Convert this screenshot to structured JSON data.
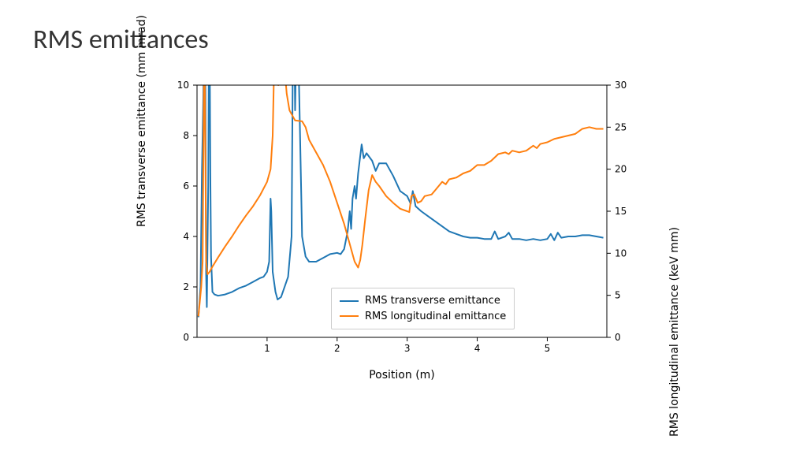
{
  "title": "RMS emittances",
  "chart": {
    "type": "line",
    "xlabel": "Position (m)",
    "ylabel_left": "RMS transverse emittance (mm mrad)",
    "ylabel_right": "RMS longitudinal emittance (keV mm)",
    "xlim": [
      0,
      5.85
    ],
    "ylim_left": [
      0,
      10
    ],
    "ylim_right": [
      0,
      30
    ],
    "xticks": [
      1,
      2,
      3,
      4,
      5
    ],
    "yticks_left": [
      0,
      2,
      4,
      6,
      8,
      10
    ],
    "yticks_right": [
      0,
      5,
      10,
      15,
      20,
      25,
      30
    ],
    "background_color": "#ffffff",
    "axis_color": "#000000",
    "tick_fontsize": 12,
    "label_fontsize": 14,
    "line_width": 2,
    "legend": {
      "position": "lower center",
      "items": [
        {
          "label": "RMS transverse emittance",
          "color": "#1f77b4"
        },
        {
          "label": "RMS longitudinal emittance",
          "color": "#ff7f0e"
        }
      ]
    },
    "series_transverse": {
      "color": "#1f77b4",
      "axis": "left",
      "data": [
        [
          0.02,
          0.8
        ],
        [
          0.05,
          2.0
        ],
        [
          0.07,
          6.5
        ],
        [
          0.09,
          9.5
        ],
        [
          0.1,
          12.0
        ],
        [
          0.11,
          12.0
        ],
        [
          0.12,
          9.8
        ],
        [
          0.13,
          2.5
        ],
        [
          0.14,
          1.2
        ],
        [
          0.16,
          6.0
        ],
        [
          0.17,
          12.0
        ],
        [
          0.18,
          12.0
        ],
        [
          0.19,
          6.5
        ],
        [
          0.2,
          3.2
        ],
        [
          0.22,
          1.8
        ],
        [
          0.25,
          1.7
        ],
        [
          0.3,
          1.65
        ],
        [
          0.4,
          1.7
        ],
        [
          0.5,
          1.8
        ],
        [
          0.6,
          1.95
        ],
        [
          0.7,
          2.05
        ],
        [
          0.8,
          2.2
        ],
        [
          0.9,
          2.35
        ],
        [
          0.95,
          2.4
        ],
        [
          1.0,
          2.6
        ],
        [
          1.03,
          3.0
        ],
        [
          1.05,
          5.5
        ],
        [
          1.06,
          5.0
        ],
        [
          1.08,
          2.6
        ],
        [
          1.12,
          1.8
        ],
        [
          1.15,
          1.5
        ],
        [
          1.2,
          1.6
        ],
        [
          1.3,
          2.4
        ],
        [
          1.35,
          4.0
        ],
        [
          1.37,
          12.0
        ],
        [
          1.39,
          12.0
        ],
        [
          1.4,
          9.0
        ],
        [
          1.42,
          12.0
        ],
        [
          1.44,
          12.0
        ],
        [
          1.46,
          9.5
        ],
        [
          1.5,
          4.0
        ],
        [
          1.55,
          3.2
        ],
        [
          1.6,
          3.0
        ],
        [
          1.7,
          3.0
        ],
        [
          1.8,
          3.15
        ],
        [
          1.9,
          3.3
        ],
        [
          2.0,
          3.35
        ],
        [
          2.05,
          3.3
        ],
        [
          2.1,
          3.5
        ],
        [
          2.15,
          4.2
        ],
        [
          2.18,
          5.0
        ],
        [
          2.2,
          4.3
        ],
        [
          2.22,
          5.5
        ],
        [
          2.25,
          6.0
        ],
        [
          2.27,
          5.5
        ],
        [
          2.3,
          6.5
        ],
        [
          2.35,
          7.65
        ],
        [
          2.38,
          7.1
        ],
        [
          2.42,
          7.3
        ],
        [
          2.5,
          7.0
        ],
        [
          2.55,
          6.6
        ],
        [
          2.6,
          6.9
        ],
        [
          2.7,
          6.9
        ],
        [
          2.8,
          6.4
        ],
        [
          2.9,
          5.8
        ],
        [
          3.0,
          5.6
        ],
        [
          3.05,
          5.3
        ],
        [
          3.08,
          5.8
        ],
        [
          3.12,
          5.2
        ],
        [
          3.2,
          5.0
        ],
        [
          3.3,
          4.8
        ],
        [
          3.4,
          4.6
        ],
        [
          3.5,
          4.4
        ],
        [
          3.6,
          4.2
        ],
        [
          3.7,
          4.1
        ],
        [
          3.8,
          4.0
        ],
        [
          3.9,
          3.95
        ],
        [
          4.0,
          3.95
        ],
        [
          4.1,
          3.9
        ],
        [
          4.2,
          3.9
        ],
        [
          4.25,
          4.2
        ],
        [
          4.3,
          3.9
        ],
        [
          4.4,
          4.0
        ],
        [
          4.45,
          4.15
        ],
        [
          4.5,
          3.9
        ],
        [
          4.6,
          3.9
        ],
        [
          4.7,
          3.85
        ],
        [
          4.8,
          3.9
        ],
        [
          4.9,
          3.85
        ],
        [
          5.0,
          3.9
        ],
        [
          5.05,
          4.1
        ],
        [
          5.1,
          3.85
        ],
        [
          5.15,
          4.15
        ],
        [
          5.2,
          3.95
        ],
        [
          5.3,
          4.0
        ],
        [
          5.4,
          4.0
        ],
        [
          5.5,
          4.05
        ],
        [
          5.6,
          4.05
        ],
        [
          5.7,
          4.0
        ],
        [
          5.8,
          3.95
        ]
      ]
    },
    "series_longitudinal": {
      "color": "#ff7f0e",
      "axis": "right",
      "data": [
        [
          0.02,
          2.5
        ],
        [
          0.06,
          6.0
        ],
        [
          0.08,
          9.0
        ],
        [
          0.1,
          32.0
        ],
        [
          0.11,
          32.0
        ],
        [
          0.13,
          9.0
        ],
        [
          0.15,
          7.5
        ],
        [
          0.18,
          7.8
        ],
        [
          0.22,
          8.4
        ],
        [
          0.3,
          9.5
        ],
        [
          0.4,
          10.8
        ],
        [
          0.5,
          12.0
        ],
        [
          0.6,
          13.3
        ],
        [
          0.7,
          14.5
        ],
        [
          0.8,
          15.6
        ],
        [
          0.9,
          16.9
        ],
        [
          1.0,
          18.5
        ],
        [
          1.05,
          20.0
        ],
        [
          1.08,
          24.0
        ],
        [
          1.1,
          32.0
        ],
        [
          1.13,
          32.0
        ],
        [
          1.16,
          30.0
        ],
        [
          1.2,
          32.0
        ],
        [
          1.23,
          32.0
        ],
        [
          1.26,
          31.0
        ],
        [
          1.28,
          29.0
        ],
        [
          1.32,
          27.0
        ],
        [
          1.4,
          25.8
        ],
        [
          1.5,
          25.7
        ],
        [
          1.55,
          25.0
        ],
        [
          1.6,
          23.5
        ],
        [
          1.7,
          22.0
        ],
        [
          1.8,
          20.5
        ],
        [
          1.9,
          18.5
        ],
        [
          2.0,
          16.0
        ],
        [
          2.1,
          13.5
        ],
        [
          2.2,
          10.5
        ],
        [
          2.25,
          9.0
        ],
        [
          2.3,
          8.3
        ],
        [
          2.33,
          9.2
        ],
        [
          2.36,
          11.0
        ],
        [
          2.4,
          14.0
        ],
        [
          2.45,
          17.5
        ],
        [
          2.5,
          19.3
        ],
        [
          2.55,
          18.5
        ],
        [
          2.6,
          18.0
        ],
        [
          2.7,
          16.8
        ],
        [
          2.8,
          16.0
        ],
        [
          2.9,
          15.3
        ],
        [
          3.0,
          15.0
        ],
        [
          3.03,
          14.9
        ],
        [
          3.06,
          16.8
        ],
        [
          3.1,
          17.0
        ],
        [
          3.15,
          16.0
        ],
        [
          3.2,
          16.2
        ],
        [
          3.25,
          16.8
        ],
        [
          3.35,
          17.0
        ],
        [
          3.4,
          17.5
        ],
        [
          3.5,
          18.5
        ],
        [
          3.55,
          18.2
        ],
        [
          3.6,
          18.8
        ],
        [
          3.7,
          19.0
        ],
        [
          3.8,
          19.5
        ],
        [
          3.9,
          19.8
        ],
        [
          4.0,
          20.5
        ],
        [
          4.1,
          20.5
        ],
        [
          4.2,
          21.0
        ],
        [
          4.3,
          21.8
        ],
        [
          4.4,
          22.0
        ],
        [
          4.45,
          21.8
        ],
        [
          4.5,
          22.2
        ],
        [
          4.6,
          22.0
        ],
        [
          4.7,
          22.2
        ],
        [
          4.8,
          22.8
        ],
        [
          4.85,
          22.5
        ],
        [
          4.9,
          23.0
        ],
        [
          5.0,
          23.2
        ],
        [
          5.1,
          23.6
        ],
        [
          5.2,
          23.8
        ],
        [
          5.3,
          24.0
        ],
        [
          5.4,
          24.2
        ],
        [
          5.5,
          24.8
        ],
        [
          5.6,
          25.0
        ],
        [
          5.7,
          24.8
        ],
        [
          5.8,
          24.8
        ]
      ]
    }
  }
}
